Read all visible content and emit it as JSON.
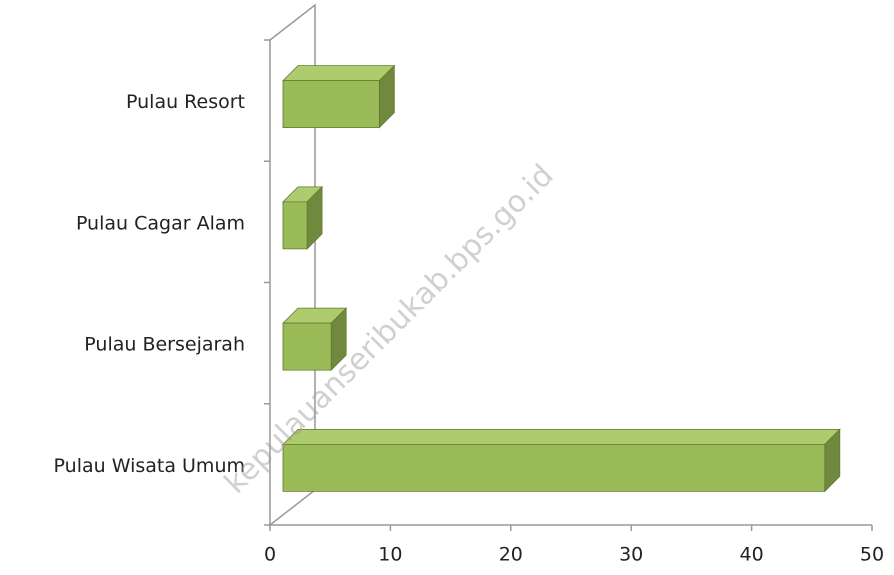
{
  "watermark": "kepulauanseribukab.bps.go.id",
  "chart_data": {
    "type": "bar3d",
    "orientation": "horizontal",
    "categories": [
      "Pulau Wisata Umum",
      "Pulau Bersejarah",
      "Pulau Cagar Alam",
      "Pulau Resort"
    ],
    "values": [
      45,
      4,
      2,
      8
    ],
    "color": "#9bbb59",
    "xlim": [
      0,
      50
    ],
    "xticks": [
      0,
      10,
      20,
      30,
      40,
      50
    ]
  }
}
